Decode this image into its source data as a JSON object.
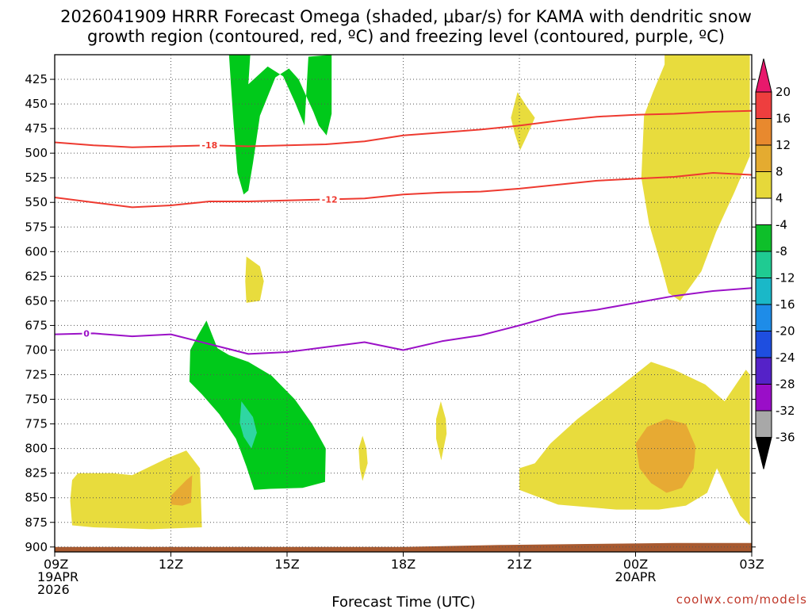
{
  "chart_data": {
    "type": "time-height cross section",
    "title_line1": "2026041909 HRRR Forecast Omega (shaded, μbar/s) for KAMA with dendritic snow",
    "title_line2": "growth region (contoured, red, ºC) and freezing level (contoured, purple, ºC)",
    "xlabel": "Forecast Time (UTC)",
    "credit": "coolwx.com/models",
    "y_ticks": [
      "425",
      "450",
      "475",
      "500",
      "525",
      "550",
      "575",
      "600",
      "625",
      "650",
      "675",
      "700",
      "725",
      "750",
      "775",
      "800",
      "825",
      "850",
      "875",
      "900"
    ],
    "ylim_hpa": [
      400,
      905
    ],
    "xlim_hours": [
      0,
      18
    ],
    "x_ticks": [
      {
        "hour": 0,
        "lines": [
          "09Z",
          "19APR",
          "2026"
        ]
      },
      {
        "hour": 3,
        "lines": [
          "12Z"
        ]
      },
      {
        "hour": 6,
        "lines": [
          "15Z"
        ]
      },
      {
        "hour": 9,
        "lines": [
          "18Z"
        ]
      },
      {
        "hour": 12,
        "lines": [
          "21Z"
        ]
      },
      {
        "hour": 15,
        "lines": [
          "00Z",
          "20APR"
        ]
      },
      {
        "hour": 18,
        "lines": [
          "03Z"
        ]
      }
    ],
    "colorbar": {
      "labels": [
        "20",
        "16",
        "12",
        "8",
        "4",
        "-4",
        "-8",
        "-12",
        "-16",
        "-20",
        "-24",
        "-28",
        "-32",
        "-36"
      ],
      "colors": [
        "#e8196c",
        "#ee3e3e",
        "#e8892e",
        "#e4ab30",
        "#e6d83a",
        "#ffffff",
        "#0ebf2a",
        "#1fcb92",
        "#1ab8c8",
        "#1e8ce8",
        "#1e4ee0",
        "#5522c8",
        "#9a0ec8",
        "#a8a8a8",
        "#000000"
      ]
    },
    "omega_regions": [
      {
        "name": "green-upper-column",
        "value": "-4 to -8",
        "color": "#00c91a",
        "points": [
          [
            4.5,
            400
          ],
          [
            5.05,
            400
          ],
          [
            5.0,
            430
          ],
          [
            5.5,
            412
          ],
          [
            5.9,
            422
          ],
          [
            6.2,
            448
          ],
          [
            6.45,
            472
          ],
          [
            6.55,
            402
          ],
          [
            7.15,
            400
          ],
          [
            7.15,
            460
          ],
          [
            7.02,
            482
          ],
          [
            6.82,
            472
          ],
          [
            6.68,
            458
          ],
          [
            6.3,
            425
          ],
          [
            6.05,
            414
          ],
          [
            5.7,
            423
          ],
          [
            5.3,
            462
          ],
          [
            5.12,
            510
          ],
          [
            5.0,
            538
          ],
          [
            4.88,
            542
          ],
          [
            4.72,
            520
          ],
          [
            4.62,
            470
          ],
          [
            4.55,
            430
          ]
        ]
      },
      {
        "name": "green-lower-lobe",
        "value": "-4 to -8",
        "color": "#00c91a",
        "points": [
          [
            3.5,
            700
          ],
          [
            3.7,
            685
          ],
          [
            3.92,
            670
          ],
          [
            4.2,
            698
          ],
          [
            4.5,
            705
          ],
          [
            5.0,
            712
          ],
          [
            5.6,
            726
          ],
          [
            6.2,
            750
          ],
          [
            6.65,
            775
          ],
          [
            7.0,
            800
          ],
          [
            6.98,
            834
          ],
          [
            6.4,
            840
          ],
          [
            5.55,
            841
          ],
          [
            5.15,
            842
          ],
          [
            4.95,
            818
          ],
          [
            4.78,
            800
          ],
          [
            4.68,
            790
          ],
          [
            4.25,
            765
          ],
          [
            3.8,
            745
          ],
          [
            3.48,
            732
          ]
        ]
      },
      {
        "name": "teal-core",
        "value": "-8 to -12",
        "color": "#2fd6a2",
        "points": [
          [
            4.82,
            752
          ],
          [
            5.12,
            768
          ],
          [
            5.22,
            784
          ],
          [
            5.08,
            800
          ],
          [
            4.88,
            788
          ],
          [
            4.78,
            774
          ]
        ]
      },
      {
        "name": "yellow-east-column",
        "value": "4 to 8",
        "color": "#e8dc3d",
        "points": [
          [
            15.75,
            400
          ],
          [
            17.95,
            400
          ],
          [
            17.95,
            503
          ],
          [
            17.55,
            540
          ],
          [
            17.08,
            580
          ],
          [
            16.7,
            620
          ],
          [
            16.15,
            650
          ],
          [
            15.85,
            642
          ],
          [
            15.65,
            612
          ],
          [
            15.35,
            572
          ],
          [
            15.15,
            525
          ],
          [
            15.22,
            462
          ],
          [
            15.45,
            438
          ],
          [
            15.75,
            410
          ]
        ]
      },
      {
        "name": "yellow-blob-21z",
        "value": "4 to 8",
        "color": "#e8dc3d",
        "points": [
          [
            11.95,
            438
          ],
          [
            12.18,
            452
          ],
          [
            12.4,
            464
          ],
          [
            12.2,
            482
          ],
          [
            12.02,
            497
          ],
          [
            11.88,
            480
          ],
          [
            11.78,
            464
          ]
        ]
      },
      {
        "name": "yellow-blob-14z",
        "value": "4 to 8",
        "color": "#e8dc3d",
        "points": [
          [
            4.95,
            605
          ],
          [
            5.3,
            615
          ],
          [
            5.4,
            630
          ],
          [
            5.3,
            650
          ],
          [
            4.95,
            652
          ],
          [
            4.92,
            630
          ]
        ]
      },
      {
        "name": "yellow-sliver-17z",
        "value": "4 to 8",
        "color": "#e8dc3d",
        "points": [
          [
            7.95,
            787
          ],
          [
            8.05,
            800
          ],
          [
            8.08,
            815
          ],
          [
            7.95,
            833
          ],
          [
            7.88,
            820
          ],
          [
            7.85,
            800
          ]
        ]
      },
      {
        "name": "yellow-sliver-19z",
        "value": "4 to 8",
        "color": "#e8dc3d",
        "points": [
          [
            9.97,
            752
          ],
          [
            10.1,
            770
          ],
          [
            10.12,
            785
          ],
          [
            9.98,
            812
          ],
          [
            9.85,
            790
          ],
          [
            9.85,
            770
          ]
        ]
      },
      {
        "name": "yellow-sw-blob",
        "value": "4 to 8",
        "color": "#e8dc3d",
        "points": [
          [
            0.4,
            853
          ],
          [
            0.45,
            832
          ],
          [
            0.6,
            825
          ],
          [
            1.5,
            825
          ],
          [
            2.0,
            827
          ],
          [
            2.9,
            810
          ],
          [
            3.4,
            802
          ],
          [
            3.75,
            820
          ],
          [
            3.8,
            880
          ],
          [
            2.5,
            882
          ],
          [
            1.0,
            880
          ],
          [
            0.45,
            878
          ]
        ]
      },
      {
        "name": "yellow-se-complex",
        "value": "4 to 8",
        "color": "#e8dc3d",
        "points": [
          [
            12.0,
            820
          ],
          [
            12.4,
            815
          ],
          [
            12.8,
            795
          ],
          [
            13.5,
            770
          ],
          [
            14.5,
            740
          ],
          [
            15.4,
            712
          ],
          [
            16.0,
            720
          ],
          [
            16.8,
            735
          ],
          [
            17.3,
            752
          ],
          [
            17.85,
            720
          ],
          [
            17.95,
            725
          ],
          [
            17.95,
            878
          ],
          [
            17.7,
            868
          ],
          [
            17.4,
            845
          ],
          [
            17.1,
            820
          ],
          [
            16.85,
            845
          ],
          [
            16.3,
            858
          ],
          [
            15.6,
            862
          ],
          [
            14.5,
            862
          ],
          [
            13.0,
            857
          ],
          [
            12.0,
            842
          ]
        ]
      },
      {
        "name": "orange-core-sw",
        "value": "8 to 12",
        "color": "#e7aa33",
        "points": [
          [
            3.0,
            848
          ],
          [
            3.4,
            832
          ],
          [
            3.55,
            827
          ],
          [
            3.52,
            855
          ],
          [
            3.3,
            858
          ],
          [
            3.0,
            857
          ]
        ]
      },
      {
        "name": "orange-core-se",
        "value": "8 to 12",
        "color": "#e7aa33",
        "points": [
          [
            15.0,
            795
          ],
          [
            15.3,
            778
          ],
          [
            15.8,
            770
          ],
          [
            16.3,
            775
          ],
          [
            16.55,
            798
          ],
          [
            16.5,
            820
          ],
          [
            16.2,
            840
          ],
          [
            15.8,
            845
          ],
          [
            15.4,
            835
          ],
          [
            15.1,
            820
          ]
        ]
      }
    ],
    "contours": [
      {
        "name": "dendritic-minus-18",
        "label": "-18",
        "label_hour": 4,
        "color": "#ee3a30",
        "points": [
          [
            0,
            489
          ],
          [
            1.0,
            492
          ],
          [
            2.0,
            494
          ],
          [
            3.0,
            493
          ],
          [
            4.0,
            492
          ],
          [
            5.0,
            493
          ],
          [
            6.0,
            492
          ],
          [
            7.0,
            491
          ],
          [
            8.0,
            488
          ],
          [
            9.0,
            482
          ],
          [
            10.0,
            479
          ],
          [
            11.0,
            476
          ],
          [
            12.0,
            472
          ],
          [
            13.0,
            467
          ],
          [
            14.0,
            463
          ],
          [
            15.0,
            461
          ],
          [
            16.0,
            460
          ],
          [
            17.0,
            458
          ],
          [
            18.0,
            457
          ]
        ]
      },
      {
        "name": "dendritic-minus-12",
        "label": "-12",
        "label_hour": 7.1,
        "color": "#ee3a30",
        "points": [
          [
            0,
            545
          ],
          [
            1.0,
            550
          ],
          [
            2.0,
            555
          ],
          [
            3.0,
            553
          ],
          [
            4.0,
            549
          ],
          [
            5.0,
            549
          ],
          [
            6.0,
            548
          ],
          [
            7.0,
            547
          ],
          [
            8.0,
            546
          ],
          [
            9.0,
            542
          ],
          [
            10.0,
            540
          ],
          [
            11.0,
            539
          ],
          [
            12.0,
            536
          ],
          [
            13.0,
            532
          ],
          [
            14.0,
            528
          ],
          [
            15.0,
            526
          ],
          [
            16.0,
            524
          ],
          [
            17.0,
            520
          ],
          [
            18.0,
            522
          ]
        ]
      },
      {
        "name": "freezing-level-0",
        "label": "0",
        "label_hour": 0.82,
        "color": "#9b11c7",
        "points": [
          [
            0,
            684
          ],
          [
            1.0,
            683
          ],
          [
            2.0,
            686
          ],
          [
            3.0,
            684
          ],
          [
            4.0,
            694
          ],
          [
            5.0,
            704
          ],
          [
            6.0,
            702
          ],
          [
            7.0,
            697
          ],
          [
            8.0,
            692
          ],
          [
            9.0,
            700
          ],
          [
            10.0,
            691
          ],
          [
            11.0,
            685
          ],
          [
            12.0,
            675
          ],
          [
            13.0,
            664
          ],
          [
            14.0,
            659
          ],
          [
            15.0,
            652
          ],
          [
            16.0,
            645
          ],
          [
            17.0,
            640
          ],
          [
            18.0,
            637
          ]
        ]
      }
    ],
    "terrain": {
      "name": "ground-surface",
      "color": "#a85a30",
      "points": [
        [
          0,
          900
        ],
        [
          9.0,
          900
        ],
        [
          11.5,
          898
        ],
        [
          13.5,
          897
        ],
        [
          16.0,
          896
        ],
        [
          18.0,
          896
        ]
      ]
    }
  }
}
